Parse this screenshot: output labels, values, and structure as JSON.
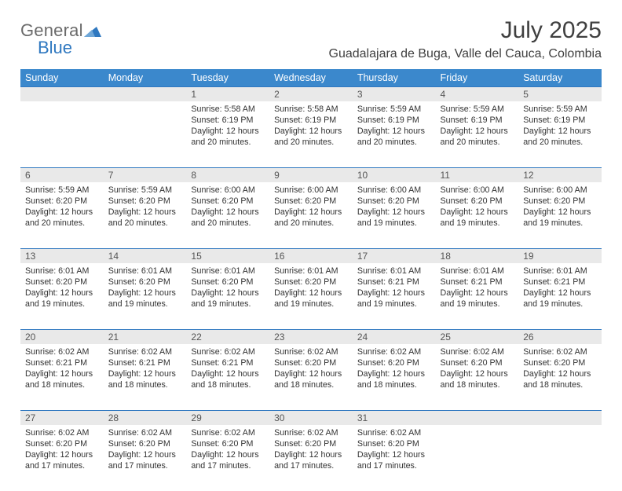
{
  "brand": {
    "word1": "General",
    "word2": "Blue",
    "triangle_color": "#2f78c0"
  },
  "title": "July 2025",
  "location": "Guadalajara de Buga, Valle del Cauca, Colombia",
  "colors": {
    "header_bg": "#3b88cc",
    "header_text": "#ffffff",
    "daynum_bg": "#e9e9e9",
    "daynum_border_top": "#2f78c0",
    "body_text": "#333333",
    "title_text": "#404040",
    "logo_gray": "#6a6a6a",
    "logo_blue": "#2f78c0",
    "page_bg": "#ffffff"
  },
  "fonts": {
    "family": "Arial",
    "title_size_pt": 22,
    "location_size_pt": 12,
    "header_size_pt": 9.5,
    "cell_size_pt": 8
  },
  "day_headers": [
    "Sunday",
    "Monday",
    "Tuesday",
    "Wednesday",
    "Thursday",
    "Friday",
    "Saturday"
  ],
  "weeks": [
    [
      null,
      null,
      {
        "n": "1",
        "sunrise": "5:58 AM",
        "sunset": "6:19 PM",
        "daylight": "12 hours and 20 minutes."
      },
      {
        "n": "2",
        "sunrise": "5:58 AM",
        "sunset": "6:19 PM",
        "daylight": "12 hours and 20 minutes."
      },
      {
        "n": "3",
        "sunrise": "5:59 AM",
        "sunset": "6:19 PM",
        "daylight": "12 hours and 20 minutes."
      },
      {
        "n": "4",
        "sunrise": "5:59 AM",
        "sunset": "6:19 PM",
        "daylight": "12 hours and 20 minutes."
      },
      {
        "n": "5",
        "sunrise": "5:59 AM",
        "sunset": "6:19 PM",
        "daylight": "12 hours and 20 minutes."
      }
    ],
    [
      {
        "n": "6",
        "sunrise": "5:59 AM",
        "sunset": "6:20 PM",
        "daylight": "12 hours and 20 minutes."
      },
      {
        "n": "7",
        "sunrise": "5:59 AM",
        "sunset": "6:20 PM",
        "daylight": "12 hours and 20 minutes."
      },
      {
        "n": "8",
        "sunrise": "6:00 AM",
        "sunset": "6:20 PM",
        "daylight": "12 hours and 20 minutes."
      },
      {
        "n": "9",
        "sunrise": "6:00 AM",
        "sunset": "6:20 PM",
        "daylight": "12 hours and 20 minutes."
      },
      {
        "n": "10",
        "sunrise": "6:00 AM",
        "sunset": "6:20 PM",
        "daylight": "12 hours and 19 minutes."
      },
      {
        "n": "11",
        "sunrise": "6:00 AM",
        "sunset": "6:20 PM",
        "daylight": "12 hours and 19 minutes."
      },
      {
        "n": "12",
        "sunrise": "6:00 AM",
        "sunset": "6:20 PM",
        "daylight": "12 hours and 19 minutes."
      }
    ],
    [
      {
        "n": "13",
        "sunrise": "6:01 AM",
        "sunset": "6:20 PM",
        "daylight": "12 hours and 19 minutes."
      },
      {
        "n": "14",
        "sunrise": "6:01 AM",
        "sunset": "6:20 PM",
        "daylight": "12 hours and 19 minutes."
      },
      {
        "n": "15",
        "sunrise": "6:01 AM",
        "sunset": "6:20 PM",
        "daylight": "12 hours and 19 minutes."
      },
      {
        "n": "16",
        "sunrise": "6:01 AM",
        "sunset": "6:20 PM",
        "daylight": "12 hours and 19 minutes."
      },
      {
        "n": "17",
        "sunrise": "6:01 AM",
        "sunset": "6:21 PM",
        "daylight": "12 hours and 19 minutes."
      },
      {
        "n": "18",
        "sunrise": "6:01 AM",
        "sunset": "6:21 PM",
        "daylight": "12 hours and 19 minutes."
      },
      {
        "n": "19",
        "sunrise": "6:01 AM",
        "sunset": "6:21 PM",
        "daylight": "12 hours and 19 minutes."
      }
    ],
    [
      {
        "n": "20",
        "sunrise": "6:02 AM",
        "sunset": "6:21 PM",
        "daylight": "12 hours and 18 minutes."
      },
      {
        "n": "21",
        "sunrise": "6:02 AM",
        "sunset": "6:21 PM",
        "daylight": "12 hours and 18 minutes."
      },
      {
        "n": "22",
        "sunrise": "6:02 AM",
        "sunset": "6:21 PM",
        "daylight": "12 hours and 18 minutes."
      },
      {
        "n": "23",
        "sunrise": "6:02 AM",
        "sunset": "6:20 PM",
        "daylight": "12 hours and 18 minutes."
      },
      {
        "n": "24",
        "sunrise": "6:02 AM",
        "sunset": "6:20 PM",
        "daylight": "12 hours and 18 minutes."
      },
      {
        "n": "25",
        "sunrise": "6:02 AM",
        "sunset": "6:20 PM",
        "daylight": "12 hours and 18 minutes."
      },
      {
        "n": "26",
        "sunrise": "6:02 AM",
        "sunset": "6:20 PM",
        "daylight": "12 hours and 18 minutes."
      }
    ],
    [
      {
        "n": "27",
        "sunrise": "6:02 AM",
        "sunset": "6:20 PM",
        "daylight": "12 hours and 17 minutes."
      },
      {
        "n": "28",
        "sunrise": "6:02 AM",
        "sunset": "6:20 PM",
        "daylight": "12 hours and 17 minutes."
      },
      {
        "n": "29",
        "sunrise": "6:02 AM",
        "sunset": "6:20 PM",
        "daylight": "12 hours and 17 minutes."
      },
      {
        "n": "30",
        "sunrise": "6:02 AM",
        "sunset": "6:20 PM",
        "daylight": "12 hours and 17 minutes."
      },
      {
        "n": "31",
        "sunrise": "6:02 AM",
        "sunset": "6:20 PM",
        "daylight": "12 hours and 17 minutes."
      },
      null,
      null
    ]
  ],
  "labels": {
    "sunrise": "Sunrise:",
    "sunset": "Sunset:",
    "daylight": "Daylight:"
  }
}
